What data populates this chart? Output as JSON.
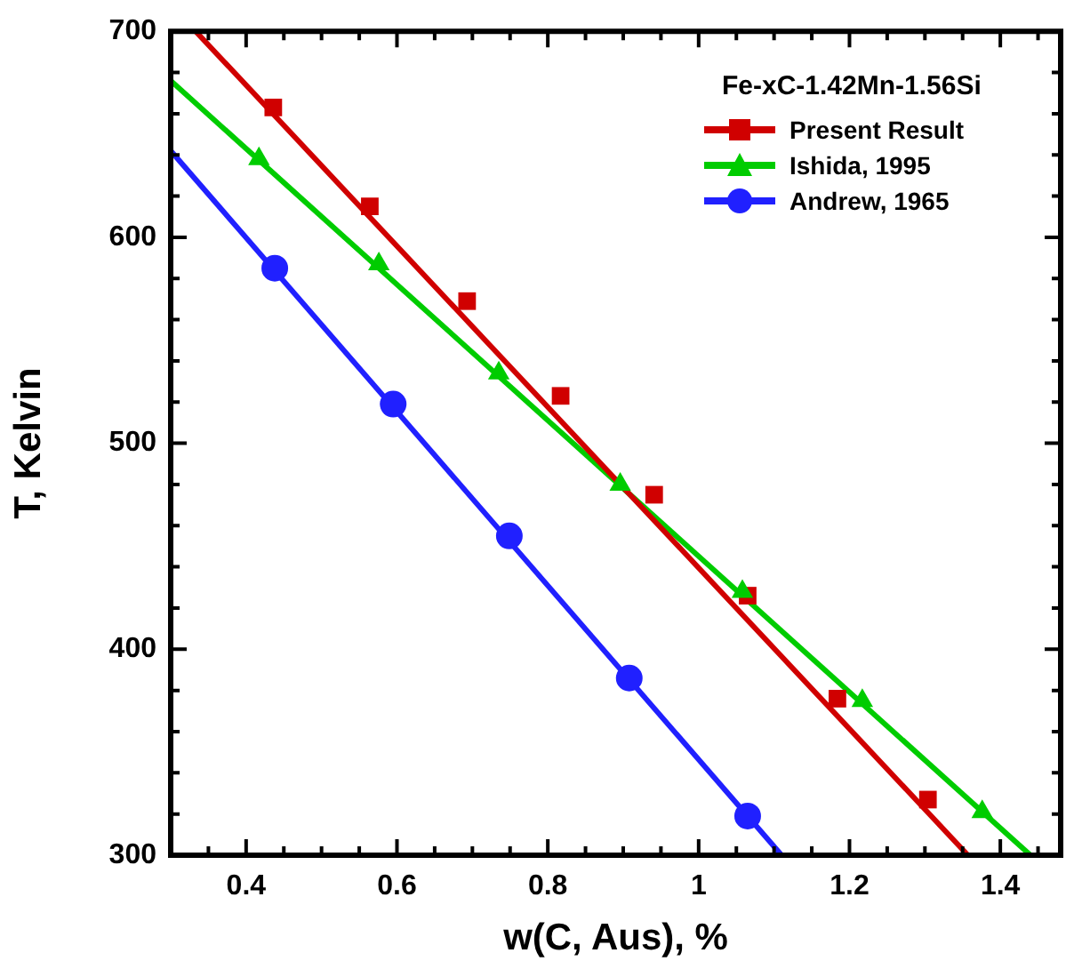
{
  "chart_data": {
    "type": "line",
    "xlabel": "w(C, Aus), %",
    "ylabel": "T, Kelvin",
    "legend_title": "Fe-xC-1.42Mn-1.56Si",
    "legend": "top right",
    "grid": false,
    "xlim": [
      0.3,
      1.48
    ],
    "xticks": [
      {
        "value": 0.3,
        "label": null
      },
      {
        "value": 0.35,
        "label": null
      },
      0.4,
      {
        "value": 0.45,
        "label": null
      },
      {
        "value": 0.5,
        "label": null
      },
      {
        "value": 0.55,
        "label": null
      },
      0.6,
      {
        "value": 0.65,
        "label": null
      },
      {
        "value": 0.7,
        "label": null
      },
      {
        "value": 0.75,
        "label": null
      },
      0.8,
      {
        "value": 0.85,
        "label": null
      },
      {
        "value": 0.9,
        "label": null
      },
      {
        "value": 0.95,
        "label": null
      },
      1,
      {
        "value": 1.05,
        "label": null
      },
      {
        "value": 1.1,
        "label": null
      },
      {
        "value": 1.15,
        "label": null
      },
      1.2,
      {
        "value": 1.25,
        "label": null
      },
      {
        "value": 1.3,
        "label": null
      },
      {
        "value": 1.35,
        "label": null
      },
      1.4,
      {
        "value": 1.45,
        "label": null
      }
    ],
    "ylim": [
      300,
      700
    ],
    "yticks": [
      300,
      {
        "value": 320,
        "label": null
      },
      {
        "value": 340,
        "label": null
      },
      {
        "value": 360,
        "label": null
      },
      {
        "value": 380,
        "label": null
      },
      400,
      {
        "value": 420,
        "label": null
      },
      {
        "value": 440,
        "label": null
      },
      {
        "value": 460,
        "label": null
      },
      {
        "value": 480,
        "label": null
      },
      500,
      {
        "value": 520,
        "label": null
      },
      {
        "value": 540,
        "label": null
      },
      {
        "value": 560,
        "label": null
      },
      {
        "value": 580,
        "label": null
      },
      600,
      {
        "value": 620,
        "label": null
      },
      {
        "value": 640,
        "label": null
      },
      {
        "value": 660,
        "label": null
      },
      {
        "value": 680,
        "label": null
      },
      700
    ],
    "series": [
      {
        "type": "line",
        "color": "#d00000",
        "marker": "none",
        "x": [
          0.333,
          1.357
        ],
        "values": [
          700,
          300
        ]
      },
      {
        "type": "line",
        "color": "#00cc00",
        "marker": "none",
        "x": [
          0.3,
          1.44
        ],
        "values": [
          676,
          300
        ]
      },
      {
        "type": "line",
        "color": "#2020ff",
        "marker": "none",
        "x": [
          0.3,
          1.11
        ],
        "values": [
          642,
          300
        ]
      },
      {
        "type": "scatter",
        "name": "Present Result",
        "color": "#d00000",
        "marker": "square",
        "x": [
          0.436,
          0.564,
          0.693,
          0.817,
          0.941,
          1.065,
          1.184,
          1.304
        ],
        "values": [
          663,
          615,
          569,
          523,
          475,
          426,
          376,
          327
        ]
      },
      {
        "type": "scatter",
        "name": "Ishida, 1995",
        "color": "#00cc00",
        "marker": "triangle",
        "x": [
          0.417,
          0.576,
          0.735,
          0.896,
          1.058,
          1.217,
          1.376
        ],
        "values": [
          638,
          587,
          534,
          480,
          428,
          375,
          321
        ]
      },
      {
        "type": "scatter",
        "name": "Andrew, 1965",
        "color": "#2020ff",
        "marker": "circle",
        "x": [
          0.438,
          0.595,
          0.749,
          0.908,
          1.065
        ],
        "values": [
          585,
          519,
          455,
          386,
          319
        ]
      }
    ]
  }
}
